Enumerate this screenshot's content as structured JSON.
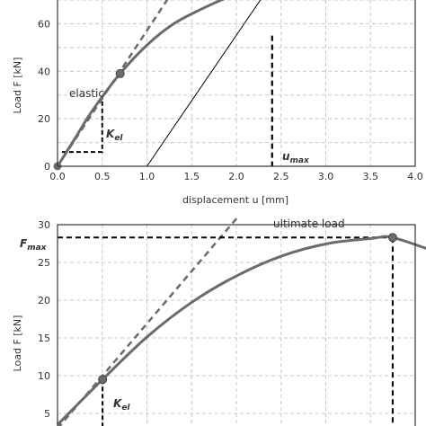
{
  "colors": {
    "curve": "#6b6b6b",
    "grid": "#c8c8c8",
    "dash": "#000000",
    "frame": "#333333"
  },
  "chart_data": [
    {
      "type": "line",
      "xlabel": "displacement u [mm]",
      "ylabel": "Load F [kN]",
      "xlim": [
        0,
        4.0
      ],
      "ylim": [
        0,
        70
      ],
      "x_ticks": [
        "0.0",
        "0.5",
        "1.0",
        "1.5",
        "2.0",
        "2.5",
        "3.0",
        "3.5",
        "4.0"
      ],
      "y_ticks": [
        "0",
        "20",
        "40",
        "60"
      ],
      "grid": true,
      "series": [
        {
          "x": [
            0,
            0.2,
            0.4,
            0.7,
            1.0,
            1.3,
            1.6,
            1.9,
            2.2
          ],
          "y": [
            0,
            12,
            24,
            39,
            51,
            60,
            66,
            71,
            74
          ]
        }
      ],
      "elastic_tangent": {
        "x": [
          0,
          1.4
        ],
        "y": [
          0,
          80
        ]
      },
      "unloading_line": {
        "x": [
          1.0,
          2.45
        ],
        "y": [
          0,
          80
        ]
      },
      "elastic_point": {
        "x": 0.7,
        "y": 39
      },
      "origin_point": {
        "x": 0,
        "y": 0
      },
      "kel_triangle": {
        "x0": 0.05,
        "x1": 0.5,
        "y_top": 29
      },
      "umax": 2.4,
      "annotations": {
        "elastic": "elastic",
        "kel_main": "K",
        "kel_sub": "el",
        "umax_main": "u",
        "umax_sub": "max"
      }
    },
    {
      "type": "line",
      "ylabel": "Load F [kN]",
      "xlim": [
        0,
        4.0
      ],
      "ylim": [
        5,
        30
      ],
      "y_ticks": [
        "5",
        "10",
        "15",
        "20",
        "25",
        "30"
      ],
      "grid": true,
      "series": [
        {
          "x": [
            0,
            0.5,
            1.0,
            1.5,
            2.0,
            2.5,
            3.0,
            3.5,
            3.72,
            4.2
          ],
          "y": [
            3.5,
            9.5,
            15.2,
            19.8,
            23.3,
            25.9,
            27.5,
            28.2,
            28.3,
            26.4
          ]
        }
      ],
      "elastic_tangent": {
        "x": [
          0,
          2.0
        ],
        "y": [
          3.0,
          31.0
        ]
      },
      "elastic_point": {
        "x": 0.5,
        "y": 9.5
      },
      "ultimate_point": {
        "x": 3.72,
        "y": 28.3
      },
      "annotations": {
        "ultimate": "ultimate load",
        "fmax_main": "F",
        "fmax_sub": "max",
        "kel_main": "K",
        "kel_sub": "el"
      }
    }
  ]
}
